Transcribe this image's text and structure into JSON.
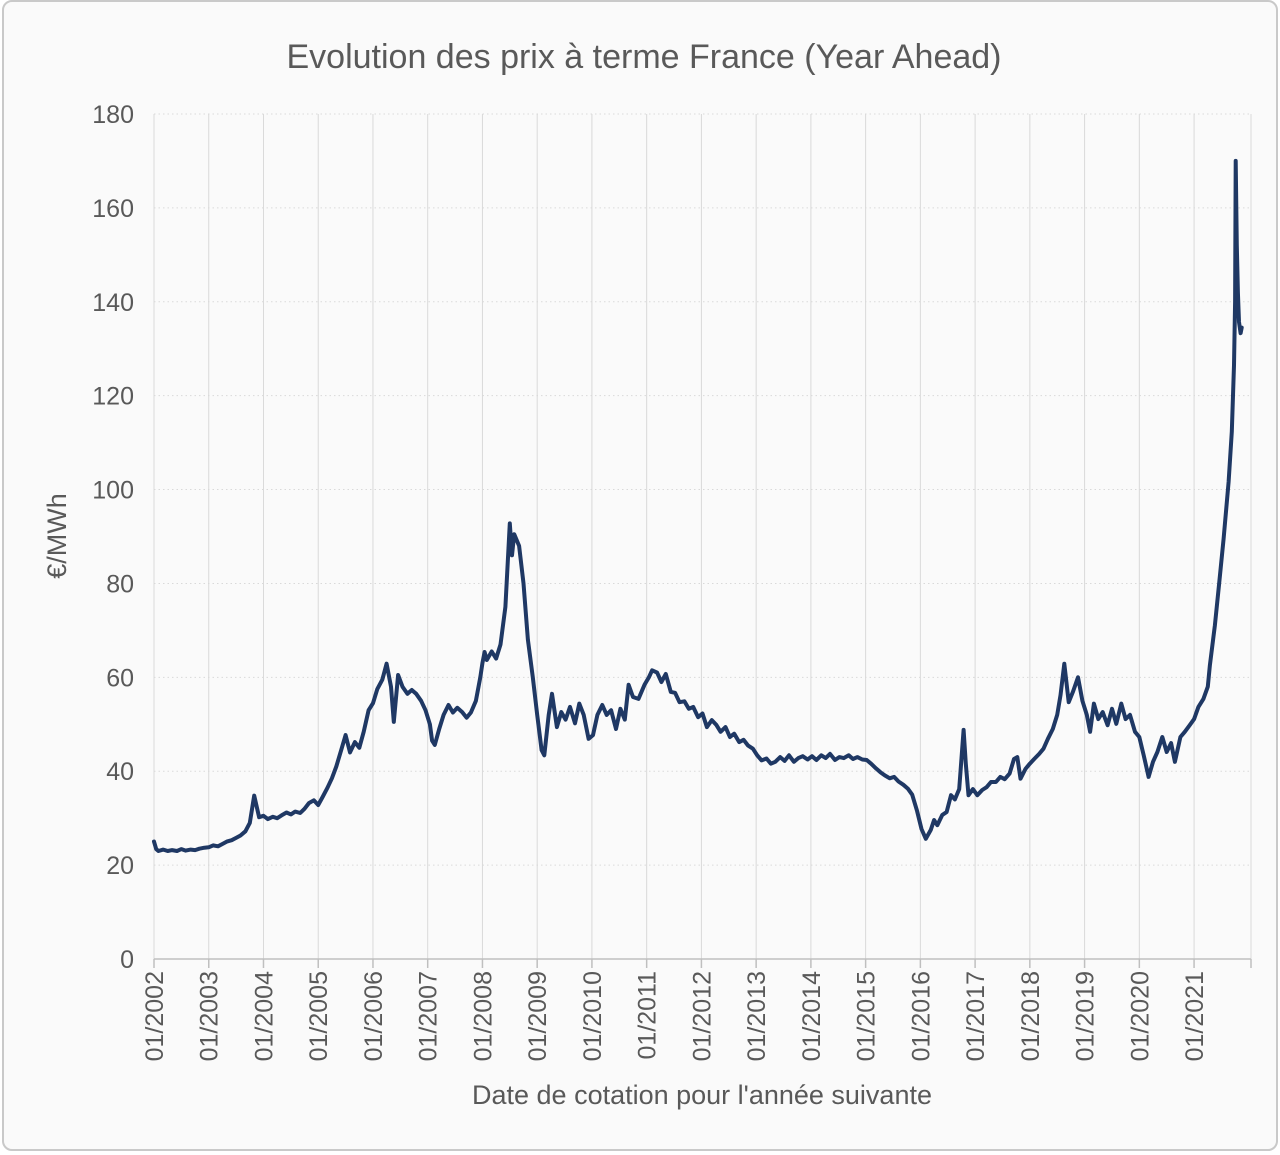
{
  "chart_data": {
    "type": "line",
    "title": "Evolution des prix à terme France (Year Ahead)",
    "xlabel": "Date de cotation pour l'année suivante",
    "ylabel": "€/MWh",
    "legend": false,
    "grid": true,
    "xlim": [
      2002.0,
      2022.04
    ],
    "ylim": [
      0,
      180
    ],
    "ytick_step": 20,
    "x_tick_years": [
      2002,
      2003,
      2004,
      2005,
      2006,
      2007,
      2008,
      2009,
      2010,
      2011,
      2012,
      2013,
      2014,
      2015,
      2016,
      2017,
      2018,
      2019,
      2020,
      2021
    ],
    "x_tick_labels": [
      "01/2002",
      "01/2003",
      "01/2004",
      "01/2005",
      "01/2006",
      "01/2007",
      "01/2008",
      "01/2009",
      "01/2010",
      "01/2011",
      "01/2012",
      "01/2013",
      "01/2014",
      "01/2015",
      "01/2016",
      "01/2017",
      "01/2018",
      "01/2019",
      "01/2020",
      "01/2021"
    ],
    "line_color": "#1f3864",
    "axis_color": "#bfbfbf",
    "gridline_color": "#d9d9d9",
    "text_color": "#595959",
    "series": [
      {
        "points": [
          [
            2002.0,
            25.0
          ],
          [
            2002.04,
            23.4
          ],
          [
            2002.08,
            23.0
          ],
          [
            2002.17,
            23.3
          ],
          [
            2002.25,
            23.0
          ],
          [
            2002.33,
            23.2
          ],
          [
            2002.42,
            23.0
          ],
          [
            2002.5,
            23.4
          ],
          [
            2002.58,
            23.1
          ],
          [
            2002.67,
            23.3
          ],
          [
            2002.75,
            23.2
          ],
          [
            2002.83,
            23.5
          ],
          [
            2002.92,
            23.7
          ],
          [
            2003.0,
            23.8
          ],
          [
            2003.08,
            24.2
          ],
          [
            2003.17,
            24.0
          ],
          [
            2003.25,
            24.5
          ],
          [
            2003.33,
            25.0
          ],
          [
            2003.42,
            25.3
          ],
          [
            2003.5,
            25.8
          ],
          [
            2003.58,
            26.3
          ],
          [
            2003.67,
            27.2
          ],
          [
            2003.75,
            29.0
          ],
          [
            2003.83,
            34.8
          ],
          [
            2003.92,
            30.2
          ],
          [
            2004.0,
            30.5
          ],
          [
            2004.08,
            29.8
          ],
          [
            2004.17,
            30.3
          ],
          [
            2004.25,
            30.0
          ],
          [
            2004.33,
            30.6
          ],
          [
            2004.42,
            31.2
          ],
          [
            2004.5,
            30.8
          ],
          [
            2004.58,
            31.4
          ],
          [
            2004.67,
            31.1
          ],
          [
            2004.75,
            32.0
          ],
          [
            2004.83,
            33.2
          ],
          [
            2004.92,
            33.8
          ],
          [
            2005.0,
            32.8
          ],
          [
            2005.08,
            34.5
          ],
          [
            2005.17,
            36.5
          ],
          [
            2005.25,
            38.5
          ],
          [
            2005.33,
            41.0
          ],
          [
            2005.42,
            44.5
          ],
          [
            2005.5,
            47.7
          ],
          [
            2005.58,
            44.0
          ],
          [
            2005.67,
            46.2
          ],
          [
            2005.75,
            45.0
          ],
          [
            2005.83,
            48.4
          ],
          [
            2005.92,
            53.0
          ],
          [
            2006.0,
            54.5
          ],
          [
            2006.08,
            57.5
          ],
          [
            2006.17,
            59.5
          ],
          [
            2006.25,
            62.9
          ],
          [
            2006.33,
            58.0
          ],
          [
            2006.38,
            50.5
          ],
          [
            2006.46,
            60.5
          ],
          [
            2006.54,
            58.0
          ],
          [
            2006.63,
            56.5
          ],
          [
            2006.71,
            57.3
          ],
          [
            2006.79,
            56.5
          ],
          [
            2006.88,
            55.0
          ],
          [
            2006.96,
            53.0
          ],
          [
            2007.04,
            50.0
          ],
          [
            2007.08,
            46.5
          ],
          [
            2007.13,
            45.6
          ],
          [
            2007.21,
            49.0
          ],
          [
            2007.29,
            52.0
          ],
          [
            2007.38,
            54.1
          ],
          [
            2007.46,
            52.5
          ],
          [
            2007.54,
            53.5
          ],
          [
            2007.63,
            52.6
          ],
          [
            2007.71,
            51.4
          ],
          [
            2007.79,
            52.5
          ],
          [
            2007.88,
            55.0
          ],
          [
            2007.96,
            60.0
          ],
          [
            2008.0,
            63.0
          ],
          [
            2008.04,
            65.4
          ],
          [
            2008.08,
            63.7
          ],
          [
            2008.17,
            65.5
          ],
          [
            2008.25,
            64.0
          ],
          [
            2008.33,
            67.0
          ],
          [
            2008.42,
            75.0
          ],
          [
            2008.5,
            92.8
          ],
          [
            2008.54,
            86.0
          ],
          [
            2008.58,
            90.5
          ],
          [
            2008.67,
            88.0
          ],
          [
            2008.75,
            80.0
          ],
          [
            2008.83,
            68.0
          ],
          [
            2008.92,
            60.0
          ],
          [
            2009.0,
            52.0
          ],
          [
            2009.08,
            44.5
          ],
          [
            2009.13,
            43.4
          ],
          [
            2009.21,
            52.0
          ],
          [
            2009.27,
            56.5
          ],
          [
            2009.36,
            49.4
          ],
          [
            2009.44,
            52.6
          ],
          [
            2009.52,
            51.0
          ],
          [
            2009.6,
            53.7
          ],
          [
            2009.69,
            50.2
          ],
          [
            2009.77,
            54.4
          ],
          [
            2009.85,
            52.0
          ],
          [
            2009.94,
            46.9
          ],
          [
            2010.02,
            47.7
          ],
          [
            2010.1,
            52.0
          ],
          [
            2010.19,
            54.1
          ],
          [
            2010.27,
            52.0
          ],
          [
            2010.35,
            53.0
          ],
          [
            2010.44,
            49.0
          ],
          [
            2010.52,
            53.3
          ],
          [
            2010.6,
            51.0
          ],
          [
            2010.67,
            58.4
          ],
          [
            2010.75,
            55.8
          ],
          [
            2010.85,
            55.4
          ],
          [
            2010.96,
            58.4
          ],
          [
            2011.04,
            60.0
          ],
          [
            2011.1,
            61.5
          ],
          [
            2011.19,
            61.0
          ],
          [
            2011.27,
            59.0
          ],
          [
            2011.35,
            60.7
          ],
          [
            2011.44,
            56.9
          ],
          [
            2011.52,
            56.7
          ],
          [
            2011.6,
            54.7
          ],
          [
            2011.69,
            54.9
          ],
          [
            2011.77,
            53.3
          ],
          [
            2011.85,
            53.7
          ],
          [
            2011.94,
            51.5
          ],
          [
            2012.02,
            52.3
          ],
          [
            2012.1,
            49.4
          ],
          [
            2012.19,
            50.9
          ],
          [
            2012.27,
            49.9
          ],
          [
            2012.35,
            48.4
          ],
          [
            2012.44,
            49.4
          ],
          [
            2012.52,
            47.3
          ],
          [
            2012.6,
            48.0
          ],
          [
            2012.69,
            46.2
          ],
          [
            2012.77,
            46.7
          ],
          [
            2012.85,
            45.5
          ],
          [
            2012.94,
            44.8
          ],
          [
            2013.02,
            43.4
          ],
          [
            2013.1,
            42.3
          ],
          [
            2013.19,
            42.7
          ],
          [
            2013.27,
            41.6
          ],
          [
            2013.35,
            42.0
          ],
          [
            2013.44,
            43.0
          ],
          [
            2013.52,
            42.2
          ],
          [
            2013.6,
            43.4
          ],
          [
            2013.69,
            42.0
          ],
          [
            2013.77,
            42.8
          ],
          [
            2013.85,
            43.2
          ],
          [
            2013.94,
            42.5
          ],
          [
            2014.02,
            43.2
          ],
          [
            2014.1,
            42.4
          ],
          [
            2014.19,
            43.4
          ],
          [
            2014.27,
            42.8
          ],
          [
            2014.35,
            43.7
          ],
          [
            2014.44,
            42.4
          ],
          [
            2014.52,
            43.0
          ],
          [
            2014.6,
            42.8
          ],
          [
            2014.69,
            43.4
          ],
          [
            2014.77,
            42.6
          ],
          [
            2014.85,
            43.0
          ],
          [
            2014.94,
            42.5
          ],
          [
            2015.02,
            42.4
          ],
          [
            2015.1,
            41.6
          ],
          [
            2015.19,
            40.6
          ],
          [
            2015.27,
            39.8
          ],
          [
            2015.35,
            39.1
          ],
          [
            2015.44,
            38.5
          ],
          [
            2015.52,
            38.8
          ],
          [
            2015.6,
            37.8
          ],
          [
            2015.69,
            37.1
          ],
          [
            2015.77,
            36.3
          ],
          [
            2015.85,
            35.0
          ],
          [
            2015.94,
            31.5
          ],
          [
            2016.02,
            27.7
          ],
          [
            2016.1,
            25.6
          ],
          [
            2016.19,
            27.5
          ],
          [
            2016.25,
            29.6
          ],
          [
            2016.31,
            28.5
          ],
          [
            2016.4,
            30.7
          ],
          [
            2016.48,
            31.3
          ],
          [
            2016.56,
            34.9
          ],
          [
            2016.63,
            34.0
          ],
          [
            2016.71,
            36.2
          ],
          [
            2016.79,
            48.8
          ],
          [
            2016.83,
            41.6
          ],
          [
            2016.88,
            34.9
          ],
          [
            2016.96,
            36.2
          ],
          [
            2017.04,
            34.9
          ],
          [
            2017.13,
            36.0
          ],
          [
            2017.21,
            36.6
          ],
          [
            2017.29,
            37.7
          ],
          [
            2017.38,
            37.7
          ],
          [
            2017.46,
            38.8
          ],
          [
            2017.54,
            38.3
          ],
          [
            2017.63,
            39.5
          ],
          [
            2017.71,
            42.6
          ],
          [
            2017.77,
            43.0
          ],
          [
            2017.83,
            38.4
          ],
          [
            2017.92,
            40.5
          ],
          [
            2018.0,
            41.6
          ],
          [
            2018.08,
            42.6
          ],
          [
            2018.17,
            43.7
          ],
          [
            2018.25,
            44.8
          ],
          [
            2018.33,
            46.9
          ],
          [
            2018.42,
            49.0
          ],
          [
            2018.5,
            52.0
          ],
          [
            2018.56,
            56.2
          ],
          [
            2018.63,
            62.9
          ],
          [
            2018.71,
            54.7
          ],
          [
            2018.79,
            57.0
          ],
          [
            2018.88,
            60.0
          ],
          [
            2018.96,
            55.0
          ],
          [
            2019.04,
            52.0
          ],
          [
            2019.1,
            48.4
          ],
          [
            2019.17,
            54.4
          ],
          [
            2019.25,
            51.1
          ],
          [
            2019.33,
            52.6
          ],
          [
            2019.42,
            49.8
          ],
          [
            2019.5,
            53.3
          ],
          [
            2019.58,
            50.1
          ],
          [
            2019.67,
            54.4
          ],
          [
            2019.75,
            51.1
          ],
          [
            2019.83,
            52.0
          ],
          [
            2019.92,
            48.4
          ],
          [
            2020.0,
            47.3
          ],
          [
            2020.08,
            43.4
          ],
          [
            2020.17,
            38.8
          ],
          [
            2020.25,
            42.0
          ],
          [
            2020.33,
            44.1
          ],
          [
            2020.42,
            47.3
          ],
          [
            2020.5,
            44.1
          ],
          [
            2020.58,
            46.0
          ],
          [
            2020.65,
            42.0
          ],
          [
            2020.75,
            47.3
          ],
          [
            2020.83,
            48.4
          ],
          [
            2020.92,
            49.8
          ],
          [
            2021.0,
            51.1
          ],
          [
            2021.08,
            53.7
          ],
          [
            2021.17,
            55.4
          ],
          [
            2021.25,
            58.0
          ],
          [
            2021.29,
            62.6
          ],
          [
            2021.38,
            71.1
          ],
          [
            2021.46,
            80.3
          ],
          [
            2021.54,
            89.5
          ],
          [
            2021.63,
            101.6
          ],
          [
            2021.69,
            112.3
          ],
          [
            2021.73,
            126.5
          ],
          [
            2021.75,
            140.0
          ],
          [
            2021.76,
            170.0
          ],
          [
            2021.78,
            152.0
          ],
          [
            2021.8,
            142.0
          ],
          [
            2021.82,
            135.7
          ],
          [
            2021.85,
            133.3
          ],
          [
            2021.87,
            134.5
          ]
        ]
      }
    ]
  }
}
